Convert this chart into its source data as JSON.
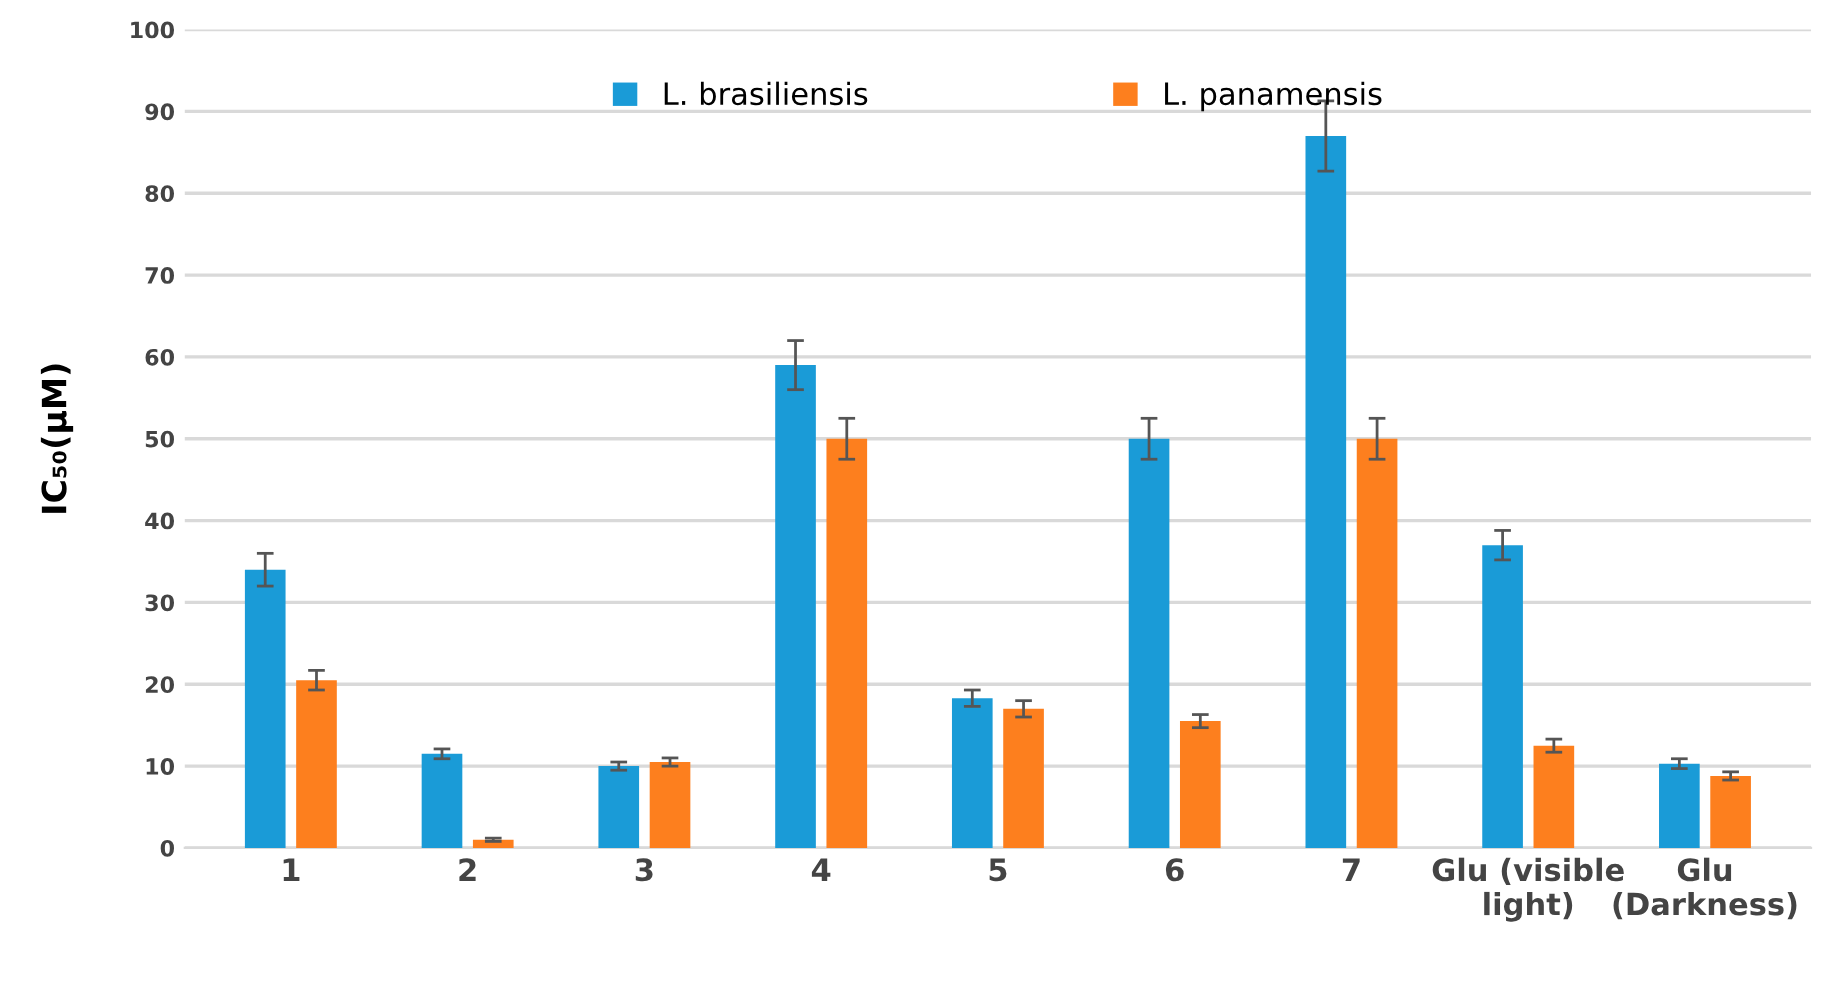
{
  "chart_data": {
    "type": "bar",
    "ylabel": "IC₅₀(μM)",
    "categories": [
      "1",
      "2",
      "3",
      "4",
      "5",
      "6",
      "7",
      "Glu (visible\nlight)",
      "Glu\n(Darkness)"
    ],
    "series": [
      {
        "name": "L. brasiliensis",
        "color": "#1a9bd7",
        "values": [
          34,
          11.5,
          10,
          59,
          18.3,
          50,
          87,
          37,
          10.3
        ],
        "errors": [
          2,
          0.6,
          0.5,
          3,
          1,
          2.5,
          4.3,
          1.8,
          0.6
        ]
      },
      {
        "name": "L. panamensis",
        "color": "#fd7f1e",
        "values": [
          20.5,
          1,
          10.5,
          50,
          17,
          15.5,
          50,
          12.5,
          8.8
        ],
        "errors": [
          1.2,
          0.2,
          0.5,
          2.5,
          1,
          0.8,
          2.5,
          0.8,
          0.5
        ]
      }
    ],
    "ylim": [
      0,
      100
    ],
    "yticks": [
      0,
      10,
      20,
      30,
      40,
      50,
      60,
      70,
      80,
      90,
      100
    ],
    "grid": "y",
    "legend": "top"
  }
}
